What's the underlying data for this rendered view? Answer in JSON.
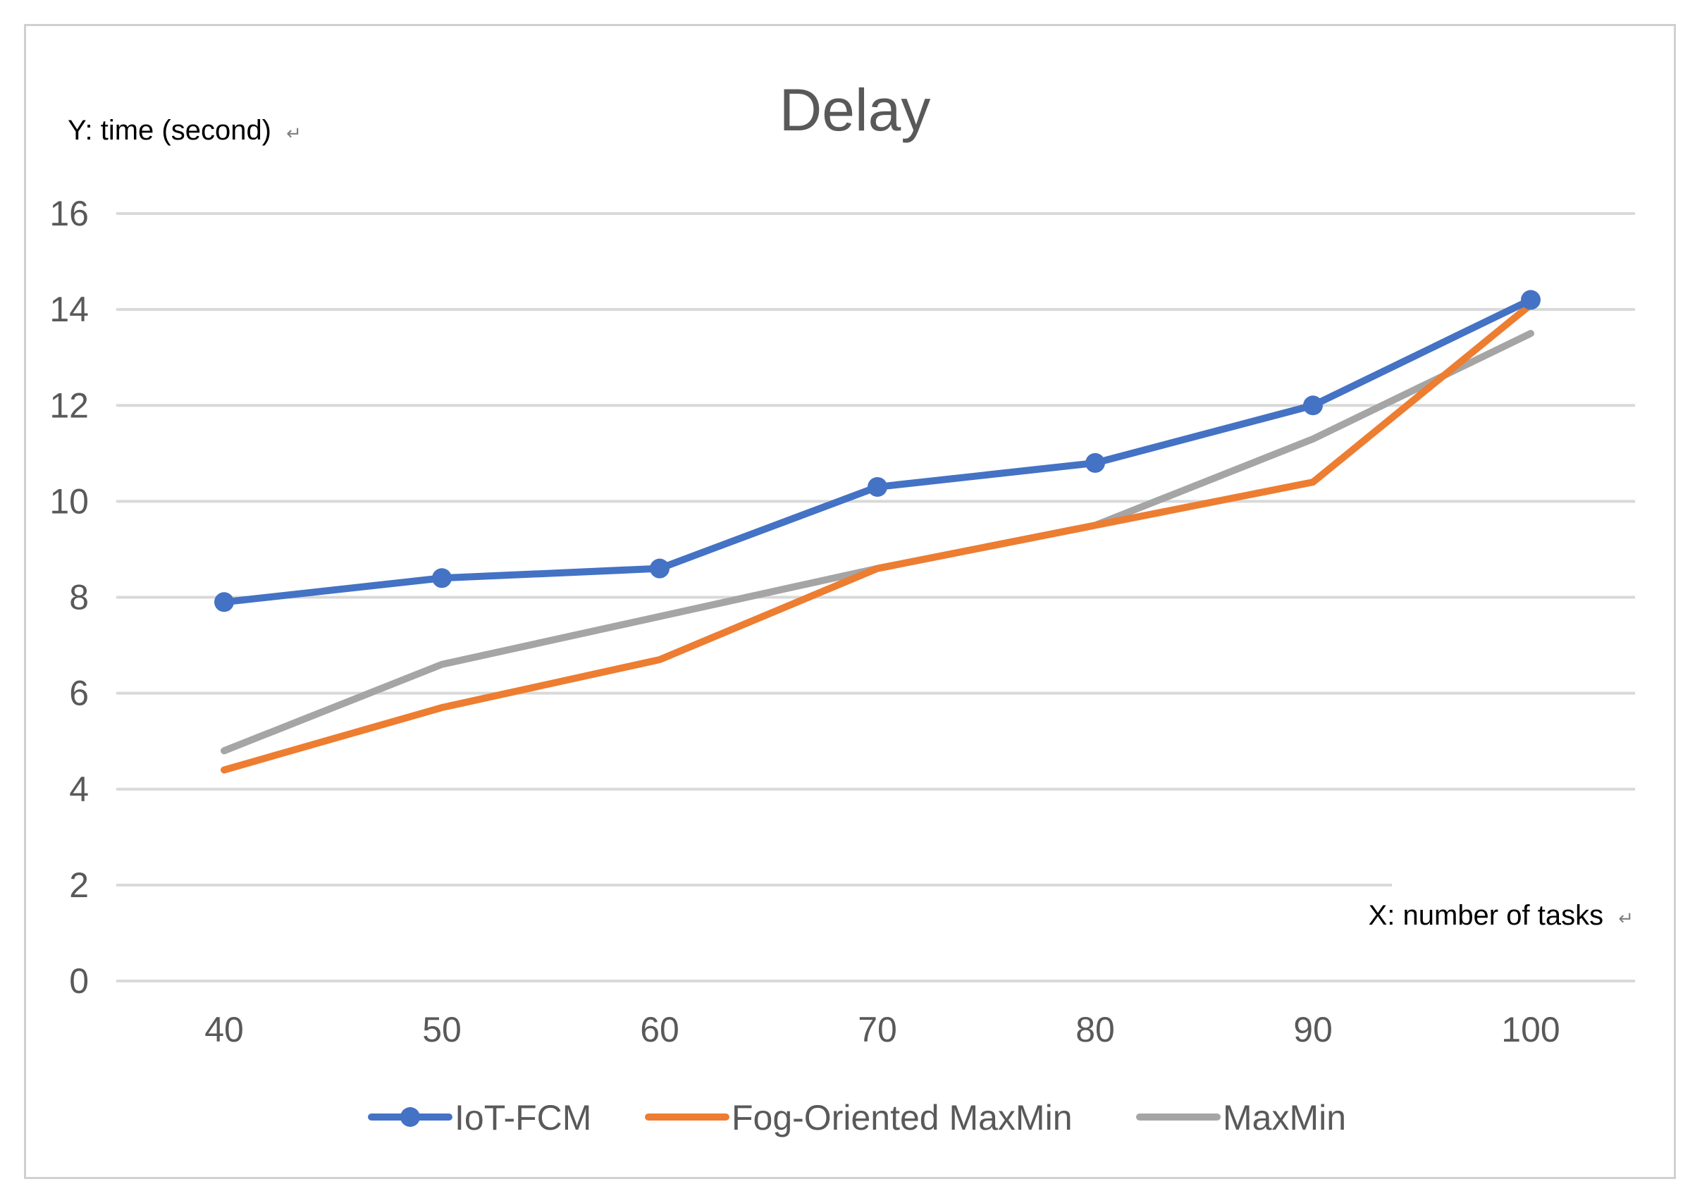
{
  "chart_data": {
    "type": "line",
    "title": "Delay",
    "ylabel": "Y: time (second)",
    "xlabel": "X: number of tasks",
    "label_mark": "↵",
    "categories": [
      "40",
      "50",
      "60",
      "70",
      "80",
      "90",
      "100"
    ],
    "ylim": [
      0,
      16
    ],
    "yticks": [
      0,
      2,
      4,
      6,
      8,
      10,
      12,
      14,
      16
    ],
    "grid": true,
    "legend_position": "bottom",
    "series": [
      {
        "name": "IoT-FCM",
        "color": "#4472c4",
        "marker": true,
        "values": [
          7.9,
          8.4,
          8.6,
          10.3,
          10.8,
          12.0,
          14.2
        ]
      },
      {
        "name": "Fog-Oriented MaxMin",
        "color": "#ed7d31",
        "marker": false,
        "values": [
          4.4,
          5.7,
          6.7,
          8.6,
          9.5,
          10.4,
          14.1
        ]
      },
      {
        "name": "MaxMin",
        "color": "#a5a5a5",
        "marker": false,
        "values": [
          4.8,
          6.6,
          7.6,
          8.6,
          9.5,
          11.3,
          13.5
        ]
      }
    ]
  }
}
